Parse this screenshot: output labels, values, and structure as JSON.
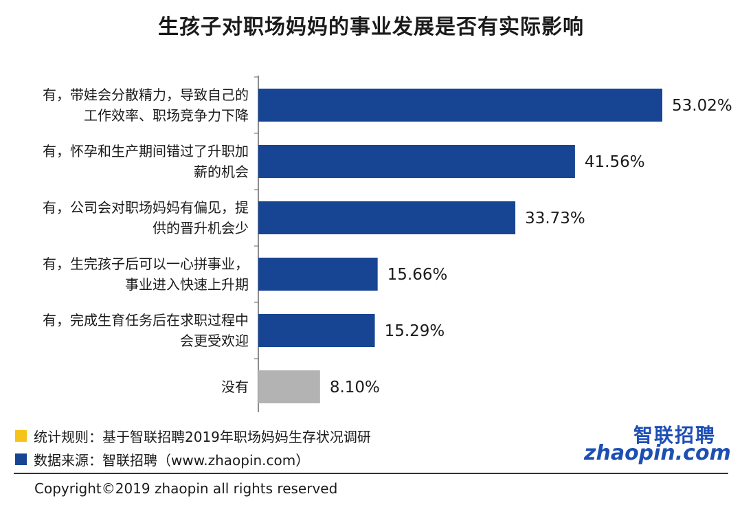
{
  "title": "生孩子对职场妈妈的事业发展是否有实际影响",
  "chart_data": {
    "type": "bar",
    "orientation": "horizontal",
    "title": "生孩子对职场妈妈的事业发展是否有实际影响",
    "categories": [
      [
        "有，带娃会分散精力，导致自己的",
        "工作效率、职场竞争力下降"
      ],
      [
        "有，怀孕和生产期间错过了升职加",
        "薪的机会"
      ],
      [
        "有，公司会对职场妈妈有偏见，提",
        "供的晋升机会少"
      ],
      [
        "有，生完孩子后可以一心拼事业，",
        "事业进入快速上升期"
      ],
      [
        "有，完成生育任务后在求职过程中",
        "会更受欢迎"
      ],
      [
        "没有"
      ]
    ],
    "values": [
      53.02,
      41.56,
      33.73,
      15.66,
      15.29,
      8.1
    ],
    "value_labels": [
      "53.02%",
      "41.56%",
      "33.73%",
      "15.66%",
      "15.29%",
      "8.10%"
    ],
    "bar_colors": [
      "#174593",
      "#174593",
      "#174593",
      "#174593",
      "#174593",
      "#b3b3b3"
    ],
    "xlim": [
      0,
      53.02
    ],
    "grid": false,
    "xlabel": "",
    "ylabel": ""
  },
  "legend": [
    {
      "color": "#f6c31a",
      "text": "统计规则：基于智联招聘2019年职场妈妈生存状况调研"
    },
    {
      "color": "#174593",
      "text": "数据来源：智联招聘（www.zhaopin.com）"
    }
  ],
  "logo": {
    "cn": "智联招聘",
    "en": "zhaopin.com",
    "icon": "zhaopin-logo"
  },
  "copyright": "Copyright©2019 zhaopin all rights reserved"
}
